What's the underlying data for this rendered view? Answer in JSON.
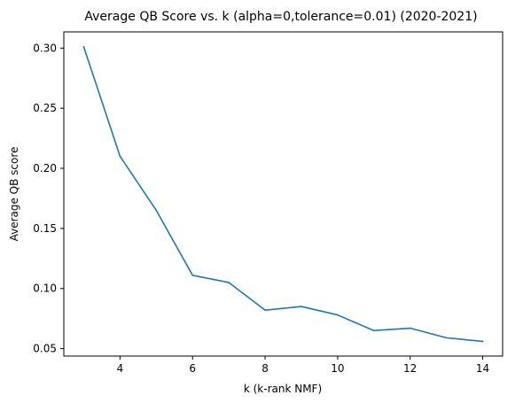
{
  "chart_data": {
    "type": "line",
    "title": "Average QB Score vs. k (alpha=0,tolerance=0.01) (2020-2021)",
    "xlabel": "k (k-rank NMF)",
    "ylabel": "Average QB score",
    "x": [
      3,
      4,
      5,
      6,
      7,
      8,
      9,
      10,
      11,
      12,
      13,
      14
    ],
    "series": [
      {
        "values": [
          0.301,
          0.21,
          0.165,
          0.111,
          0.105,
          0.082,
          0.085,
          0.078,
          0.065,
          0.067,
          0.059,
          0.056
        ],
        "color": "#1f77b4"
      }
    ],
    "xticks": [
      4,
      6,
      8,
      10,
      12,
      14
    ],
    "xtick_labels": [
      "4",
      "6",
      "8",
      "10",
      "12",
      "14"
    ],
    "yticks": [
      0.05,
      0.1,
      0.15,
      0.2,
      0.25,
      0.3
    ],
    "ytick_labels": [
      "0.05",
      "0.10",
      "0.15",
      "0.20",
      "0.25",
      "0.30"
    ],
    "xlim": [
      2.45,
      14.55
    ],
    "ylim": [
      0.0438,
      0.3135
    ],
    "grid": false,
    "legend": "none"
  }
}
